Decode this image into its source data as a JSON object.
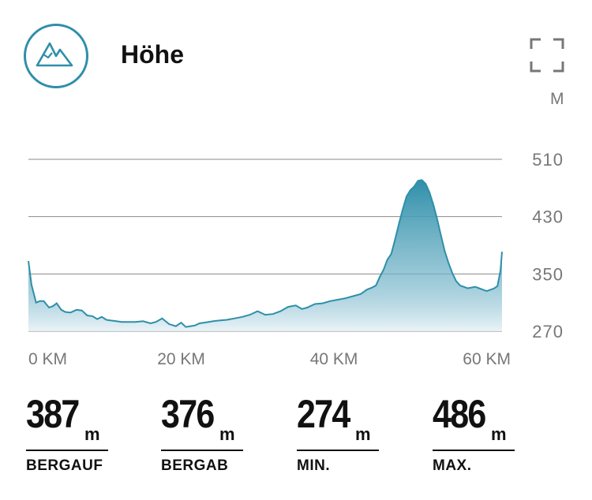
{
  "header": {
    "title": "Höhe",
    "icon": "mountain-icon",
    "expand_icon": "expand-icon",
    "unit": "M",
    "accent": "#2e8fa9"
  },
  "chart_data": {
    "type": "area",
    "xlabel": "",
    "ylabel": "",
    "x_unit": "km",
    "y_unit": "m",
    "xlim": [
      0,
      62
    ],
    "ylim": [
      270,
      520
    ],
    "x_ticks": [
      0,
      20,
      40,
      60
    ],
    "x_tick_labels": [
      "0 KM",
      "20 KM",
      "40 KM",
      "60 KM"
    ],
    "y_ticks": [
      270,
      350,
      430,
      510
    ],
    "y_tick_labels": [
      "270",
      "350",
      "430",
      "510"
    ],
    "grid": true,
    "legend": "none",
    "colors": {
      "line": "#2e8fa9",
      "fill_top": "#2e8fa9",
      "fill_bottom": "#e8f2f6",
      "grid": "#8a8a8a"
    },
    "x": [
      0,
      0.4,
      1,
      1.5,
      2,
      2.7,
      3.2,
      3.7,
      4.3,
      4.8,
      5.5,
      6.3,
      7,
      7.7,
      8.4,
      9,
      9.6,
      10.2,
      10.8,
      11.5,
      12.2,
      13,
      14,
      15,
      16,
      16.7,
      17.5,
      18.4,
      19.3,
      20,
      20.6,
      21.2,
      21.8,
      22.4,
      23,
      23.6,
      24.2,
      25,
      26,
      27,
      28,
      29,
      30,
      31,
      32,
      33,
      34,
      35,
      35.8,
      36.5,
      37.5,
      38.5,
      39.5,
      40.5,
      41.5,
      42.5,
      43.5,
      44.3,
      45,
      45.5,
      46,
      46.5,
      47,
      47.5,
      48,
      48.5,
      49,
      49.5,
      50,
      50.5,
      51,
      51.5,
      52,
      52.5,
      53,
      53.5,
      54,
      54.5,
      55,
      55.5,
      56,
      56.5,
      57,
      57.5,
      58,
      58.5,
      59,
      59.5,
      60,
      60.5,
      61,
      61.4,
      61.8,
      62
    ],
    "y": [
      368,
      335,
      310,
      312,
      312,
      303,
      305,
      309,
      300,
      297,
      296,
      300,
      299,
      292,
      291,
      287,
      290,
      286,
      285,
      284,
      283,
      283,
      283,
      284,
      281,
      283,
      288,
      280,
      277,
      282,
      276,
      277,
      278,
      281,
      282,
      283,
      284,
      285,
      286,
      288,
      290,
      293,
      298,
      293,
      294,
      298,
      304,
      306,
      301,
      303,
      308,
      309,
      312,
      314,
      316,
      319,
      322,
      328,
      331,
      334,
      346,
      356,
      370,
      378,
      398,
      420,
      440,
      458,
      467,
      472,
      480,
      481,
      476,
      464,
      447,
      427,
      404,
      382,
      365,
      351,
      340,
      334,
      332,
      330,
      331,
      332,
      330,
      328,
      326,
      328,
      330,
      333,
      355,
      381
    ],
    "stats": [
      {
        "value": "387",
        "unit": "m",
        "label": "BERGAUF"
      },
      {
        "value": "376",
        "unit": "m",
        "label": "BERGAB"
      },
      {
        "value": "274",
        "unit": "m",
        "label": "MIN."
      },
      {
        "value": "486",
        "unit": "m",
        "label": "MAX."
      }
    ]
  }
}
